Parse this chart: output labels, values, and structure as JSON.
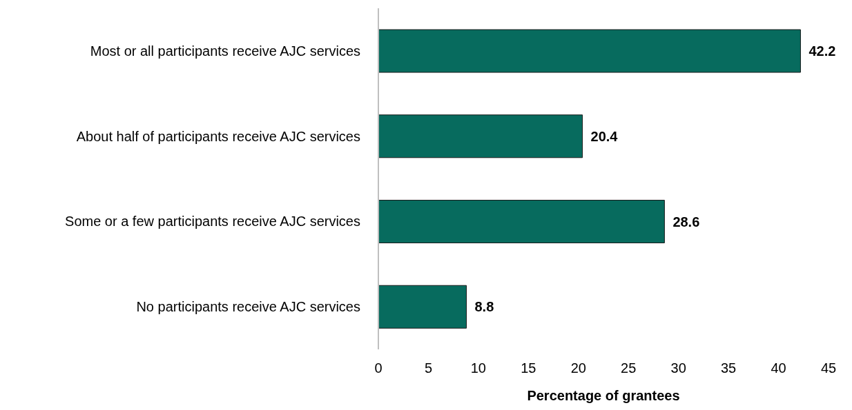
{
  "chart_data": {
    "type": "bar",
    "orientation": "horizontal",
    "xlabel": "Percentage of grantees",
    "categories": [
      "Most or all participants receive AJC services",
      "About half of participants receive AJC services",
      "Some or a few participants receive AJC services",
      "No participants receive AJC services"
    ],
    "values": [
      42.2,
      20.4,
      28.6,
      8.8
    ],
    "color": "#076b5e",
    "xlim": [
      0,
      45
    ],
    "xticks": [
      0,
      5,
      10,
      15,
      20,
      25,
      30,
      35,
      40,
      45
    ],
    "grid": false,
    "data_labels": true
  }
}
